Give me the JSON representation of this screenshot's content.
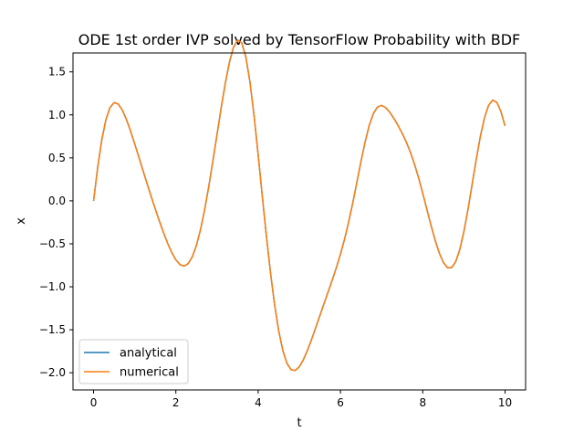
{
  "chart_data": {
    "type": "line",
    "title": "ODE 1st order IVP solved by TensorFlow Probability with BDF",
    "xlabel": "t",
    "ylabel": "x",
    "xlim": [
      -0.5,
      10.5
    ],
    "ylim": [
      -2.2,
      1.72
    ],
    "xticks": [
      0,
      2,
      4,
      6,
      8,
      10
    ],
    "xtick_labels": [
      "0",
      "2",
      "4",
      "6",
      "8",
      "10"
    ],
    "yticks": [
      -2.0,
      -1.5,
      -1.0,
      -0.5,
      0.0,
      0.5,
      1.0,
      1.5
    ],
    "ytick_labels": [
      "−2.0",
      "−1.5",
      "−1.0",
      "−0.5",
      "0.0",
      "0.5",
      "1.0",
      "1.5"
    ],
    "grid": false,
    "legend_position": "lower-left",
    "x": [
      0.0,
      0.1,
      0.2,
      0.3,
      0.4,
      0.5,
      0.6,
      0.7,
      0.8,
      0.9,
      1.0,
      1.1,
      1.2,
      1.3,
      1.4,
      1.5,
      1.6,
      1.7,
      1.8,
      1.9,
      2.0,
      2.1,
      2.2,
      2.3,
      2.4,
      2.5,
      2.6,
      2.7,
      2.8,
      2.9,
      3.0,
      3.1,
      3.2,
      3.3,
      3.4,
      3.5,
      3.6,
      3.7,
      3.8,
      3.9,
      4.0,
      4.1,
      4.2,
      4.3,
      4.4,
      4.5,
      4.6,
      4.7,
      4.8,
      4.9,
      5.0,
      5.1,
      5.2,
      5.3,
      5.4,
      5.5,
      5.6,
      5.7,
      5.8,
      5.9,
      6.0,
      6.1,
      6.2,
      6.3,
      6.4,
      6.5,
      6.6,
      6.7,
      6.8,
      6.9,
      7.0,
      7.1,
      7.2,
      7.3,
      7.4,
      7.5,
      7.6,
      7.7,
      7.8,
      7.9,
      8.0,
      8.1,
      8.2,
      8.3,
      8.4,
      8.5,
      8.6,
      8.7,
      8.8,
      8.9,
      9.0,
      9.1,
      9.2,
      9.3,
      9.4,
      9.5,
      9.6,
      9.7,
      9.8,
      9.9,
      10.0
    ],
    "series": [
      {
        "name": "analytical",
        "color": "#1f77b4",
        "values": [
          0.0,
          0.3877,
          0.7104,
          0.9451,
          1.0868,
          1.1425,
          1.1262,
          1.0548,
          0.9447,
          0.8101,
          0.6622,
          0.5087,
          0.3542,
          0.2012,
          0.0512,
          -0.0951,
          -0.2363,
          -0.3703,
          -0.4937,
          -0.6015,
          -0.6869,
          -0.7422,
          -0.7591,
          -0.7305,
          -0.6509,
          -0.5179,
          -0.3331,
          -0.1016,
          0.1676,
          0.4626,
          0.7707,
          1.0773,
          1.3634,
          1.6079,
          1.7859,
          1.8707,
          1.8382,
          1.6751,
          1.3857,
          0.9932,
          0.5361,
          0.0573,
          -0.4081,
          -0.837,
          -1.2101,
          -1.5143,
          -1.7417,
          -1.89,
          -1.9642,
          -1.9739,
          -1.9306,
          -1.8478,
          -1.7376,
          -1.6103,
          -1.4741,
          -1.3352,
          -1.1973,
          -1.0608,
          -0.9229,
          -0.7786,
          -0.6215,
          -0.4456,
          -0.2462,
          -0.023,
          0.217,
          0.4602,
          0.6867,
          0.8775,
          1.0152,
          1.0916,
          1.1102,
          1.0841,
          1.0292,
          0.9578,
          0.8763,
          0.7857,
          0.6833,
          0.5647,
          0.426,
          0.2664,
          0.089,
          -0.0981,
          -0.2838,
          -0.4561,
          -0.604,
          -0.7153,
          -0.7772,
          -0.7781,
          -0.7092,
          -0.5677,
          -0.3595,
          -0.0998,
          0.1893,
          0.4814,
          0.7483,
          0.9645,
          1.1101,
          1.1718,
          1.1455,
          1.0388,
          0.8723
        ]
      },
      {
        "name": "numerical",
        "color": "#ff7f0e",
        "values": [
          0.0,
          0.3877,
          0.7104,
          0.9451,
          1.0868,
          1.1425,
          1.1262,
          1.0548,
          0.9447,
          0.8101,
          0.6622,
          0.5087,
          0.3542,
          0.2012,
          0.0512,
          -0.0951,
          -0.2363,
          -0.3703,
          -0.4937,
          -0.6015,
          -0.6869,
          -0.7422,
          -0.7591,
          -0.7305,
          -0.6509,
          -0.5179,
          -0.3331,
          -0.1016,
          0.1676,
          0.4626,
          0.7707,
          1.0773,
          1.3634,
          1.6079,
          1.7859,
          1.8707,
          1.8382,
          1.6751,
          1.3857,
          0.9932,
          0.5361,
          0.0573,
          -0.4081,
          -0.837,
          -1.2101,
          -1.5143,
          -1.7417,
          -1.89,
          -1.9642,
          -1.9739,
          -1.9306,
          -1.8478,
          -1.7376,
          -1.6103,
          -1.4741,
          -1.3352,
          -1.1973,
          -1.0608,
          -0.9229,
          -0.7786,
          -0.6215,
          -0.4456,
          -0.2462,
          -0.023,
          0.217,
          0.4602,
          0.6867,
          0.8775,
          1.0152,
          1.0916,
          1.1102,
          1.0841,
          1.0292,
          0.9578,
          0.8763,
          0.7857,
          0.6833,
          0.5647,
          0.426,
          0.2664,
          0.089,
          -0.0981,
          -0.2838,
          -0.4561,
          -0.604,
          -0.7153,
          -0.7772,
          -0.7781,
          -0.7092,
          -0.5677,
          -0.3595,
          -0.0998,
          0.1893,
          0.4814,
          0.7483,
          0.9645,
          1.1101,
          1.1718,
          1.1455,
          1.0388,
          0.8723
        ]
      }
    ]
  }
}
